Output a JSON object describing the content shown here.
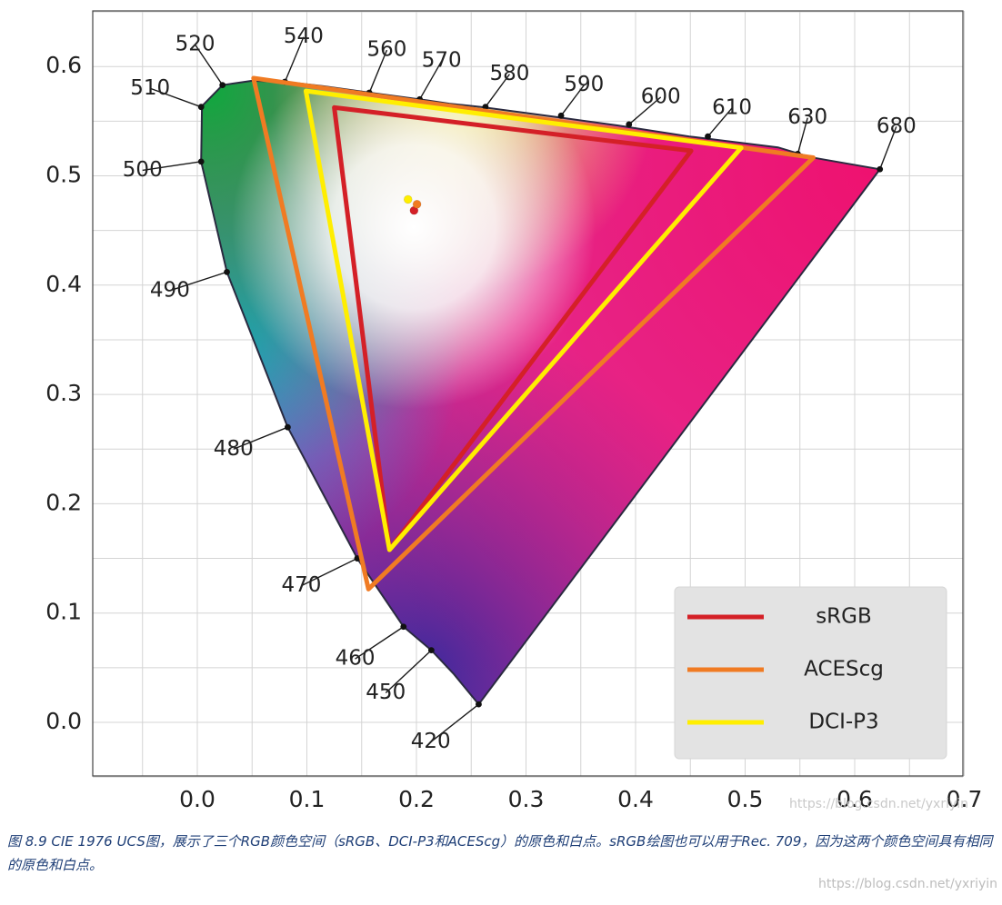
{
  "chart_data": {
    "type": "scatter",
    "title": "CIE 1976 UCS",
    "xlabel": "",
    "ylabel": "",
    "xlim": [
      -0.1,
      0.7
    ],
    "ylim": [
      -0.05,
      0.65
    ],
    "xticks": [
      0.0,
      0.1,
      0.2,
      0.3,
      0.4,
      0.5,
      0.6,
      0.7
    ],
    "yticks": [
      0.0,
      0.1,
      0.2,
      0.3,
      0.4,
      0.5,
      0.6
    ],
    "xtick_labels": [
      "0.0",
      "0.1",
      "0.2",
      "0.3",
      "0.4",
      "0.5",
      "0.6",
      "0.7"
    ],
    "ytick_labels": [
      "0.0",
      "0.1",
      "0.2",
      "0.3",
      "0.4",
      "0.5",
      "0.6"
    ],
    "grid": true,
    "spectral_locus": [
      [
        0.2568,
        0.0165
      ],
      [
        0.2343,
        0.044
      ],
      [
        0.2136,
        0.066
      ],
      [
        0.1882,
        0.0875
      ],
      [
        0.146,
        0.15
      ],
      [
        0.0825,
        0.27
      ],
      [
        0.027,
        0.412
      ],
      [
        0.0035,
        0.513
      ],
      [
        0.0042,
        0.56
      ],
      [
        0.0035,
        0.563
      ],
      [
        0.023,
        0.583
      ],
      [
        0.05,
        0.587
      ],
      [
        0.08,
        0.586
      ],
      [
        0.115,
        0.582
      ],
      [
        0.165,
        0.575
      ],
      [
        0.21,
        0.569
      ],
      [
        0.23,
        0.566
      ],
      [
        0.259,
        0.563
      ],
      [
        0.326,
        0.554
      ],
      [
        0.384,
        0.546
      ],
      [
        0.449,
        0.536
      ],
      [
        0.53,
        0.526
      ],
      [
        0.56,
        0.517
      ],
      [
        0.623,
        0.506
      ]
    ],
    "wavelength_marks": [
      {
        "label": "420",
        "point": [
          0.2568,
          0.0165
        ],
        "text_at": [
          0.213,
          -0.018
        ]
      },
      {
        "label": "450",
        "point": [
          0.2136,
          0.066
        ],
        "text_at": [
          0.172,
          0.027
        ]
      },
      {
        "label": "460",
        "point": [
          0.1882,
          0.0875
        ],
        "text_at": [
          0.144,
          0.058
        ]
      },
      {
        "label": "470",
        "point": [
          0.146,
          0.15
        ],
        "text_at": [
          0.095,
          0.125
        ]
      },
      {
        "label": "480",
        "point": [
          0.0825,
          0.27
        ],
        "text_at": [
          0.033,
          0.25
        ]
      },
      {
        "label": "490",
        "point": [
          0.027,
          0.412
        ],
        "text_at": [
          -0.025,
          0.395
        ]
      },
      {
        "label": "500",
        "point": [
          0.0035,
          0.513
        ],
        "text_at": [
          -0.05,
          0.505
        ]
      },
      {
        "label": "510",
        "point": [
          0.0035,
          0.563
        ],
        "text_at": [
          -0.043,
          0.58
        ]
      },
      {
        "label": "520",
        "point": [
          0.023,
          0.583
        ],
        "text_at": [
          -0.002,
          0.62
        ]
      },
      {
        "label": "540",
        "point": [
          0.08,
          0.586
        ],
        "text_at": [
          0.097,
          0.627
        ]
      },
      {
        "label": "560",
        "point": [
          0.157,
          0.576
        ],
        "text_at": [
          0.173,
          0.615
        ]
      },
      {
        "label": "570",
        "point": [
          0.203,
          0.57
        ],
        "text_at": [
          0.223,
          0.605
        ]
      },
      {
        "label": "580",
        "point": [
          0.263,
          0.563
        ],
        "text_at": [
          0.285,
          0.593
        ]
      },
      {
        "label": "590",
        "point": [
          0.332,
          0.555
        ],
        "text_at": [
          0.353,
          0.583
        ]
      },
      {
        "label": "600",
        "point": [
          0.394,
          0.547
        ],
        "text_at": [
          0.423,
          0.572
        ]
      },
      {
        "label": "610",
        "point": [
          0.466,
          0.536
        ],
        "text_at": [
          0.488,
          0.562
        ]
      },
      {
        "label": "630",
        "point": [
          0.548,
          0.52
        ],
        "text_at": [
          0.557,
          0.553
        ]
      },
      {
        "label": "680",
        "point": [
          0.623,
          0.506
        ],
        "text_at": [
          0.638,
          0.545
        ]
      }
    ],
    "series": [
      {
        "name": "sRGB",
        "color": "#d42027",
        "points": [
          [
            0.4507,
            0.5229
          ],
          [
            0.125,
            0.5625
          ],
          [
            0.1754,
            0.1579
          ]
        ]
      },
      {
        "name": "ACEScg",
        "color": "#f07b23",
        "points": [
          [
            0.5622,
            0.5166
          ],
          [
            0.0513,
            0.5894
          ],
          [
            0.1562,
            0.1219
          ]
        ]
      },
      {
        "name": "DCI-P3",
        "color": "#ffee00",
        "points": [
          [
            0.4964,
            0.5256
          ],
          [
            0.0991,
            0.5776
          ],
          [
            0.1754,
            0.1579
          ]
        ]
      }
    ],
    "white_points": [
      {
        "name": "sRGB",
        "point": [
          0.1978,
          0.4683
        ],
        "color": "#d42027"
      },
      {
        "name": "ACEScg",
        "point": [
          0.2005,
          0.474
        ],
        "color": "#f07b23"
      },
      {
        "name": "DCI-P3",
        "point": [
          0.1923,
          0.4784
        ],
        "color": "#ffee00"
      }
    ],
    "legend": {
      "position": "bottom-right",
      "entries": [
        "sRGB",
        "ACEScg",
        "DCI-P3"
      ]
    }
  },
  "caption": "图 8.9   CIE 1976 UCS图，展示了三个RGB颜色空间（sRGB、DCI-P3和ACEScg）的原色和白点。sRGB绘图也可以用于Rec. 709，因为这两个颜色空间具有相同的原色和白点。",
  "watermarks": {
    "plot": "https://blog.csdn.net/yxriyin",
    "page": "https://blog.csdn.net/yxriyin"
  }
}
